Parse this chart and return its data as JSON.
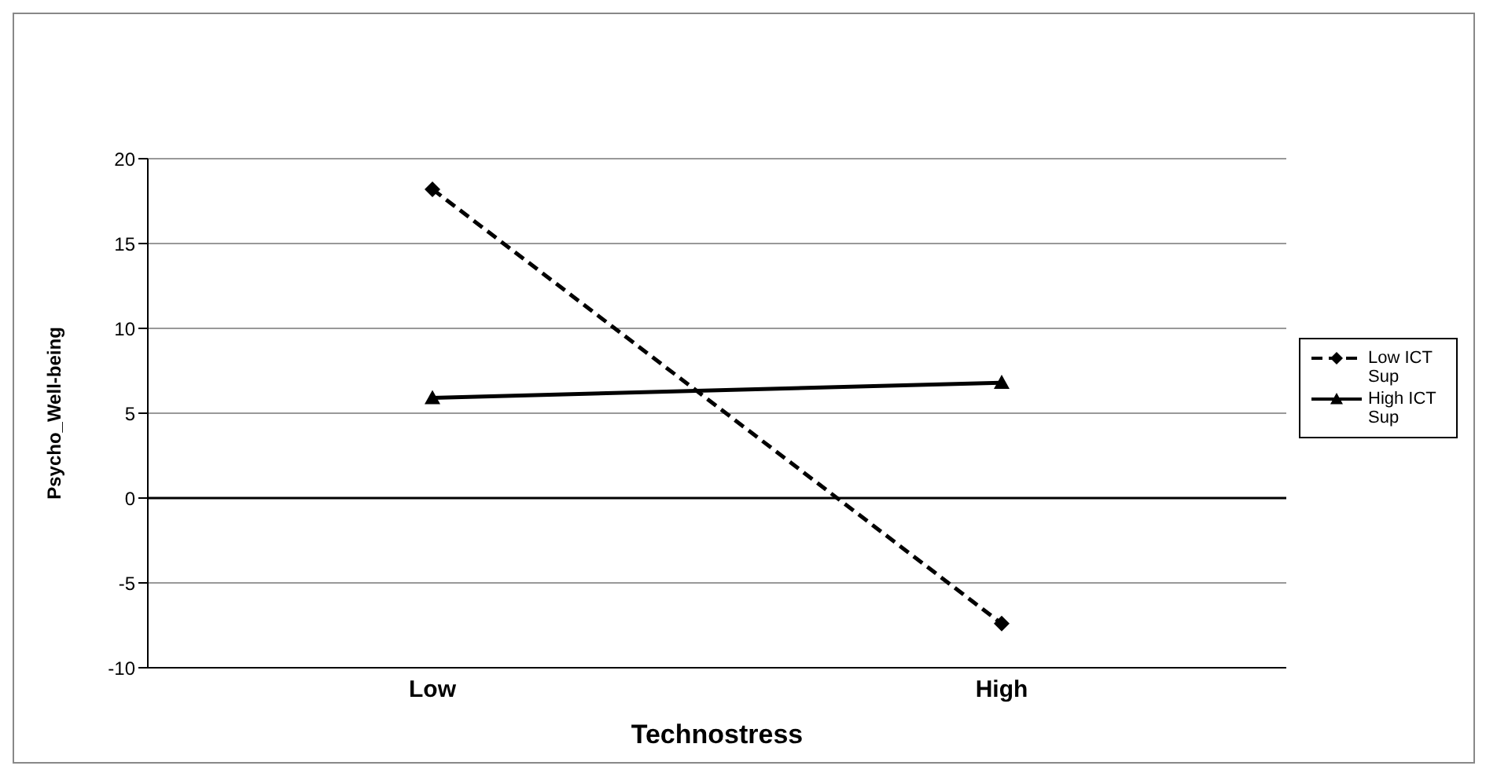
{
  "chart_data": {
    "type": "line",
    "xlabel": "Technostress",
    "ylabel": "Psycho_Well-being",
    "categories": [
      "Low",
      "High"
    ],
    "series": [
      {
        "name": "Low ICT Sup",
        "color": "#000000",
        "values": [
          18.2,
          -7.4
        ],
        "marker": "diamond",
        "line_style": "dashed"
      },
      {
        "name": "High ICT Sup",
        "color": "#000000",
        "values": [
          5.9,
          6.8
        ],
        "marker": "triangle",
        "line_style": "solid"
      }
    ],
    "ylim": [
      -10,
      20
    ],
    "yticks": [
      -10,
      -5,
      0,
      5,
      10,
      15,
      20
    ],
    "grid": "y",
    "legend": "right",
    "ref_lines": [
      {
        "axis": "y",
        "value": 0,
        "color": "#000000"
      }
    ]
  }
}
